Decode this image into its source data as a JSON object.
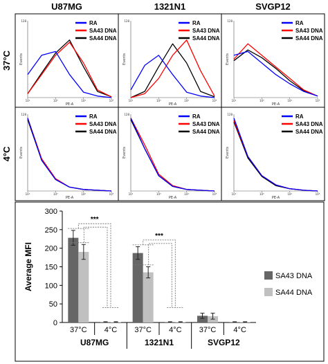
{
  "chart_data": [
    {
      "type": "line",
      "panel": "flow-histogram-grid",
      "columns": [
        "U87MG",
        "1321N1",
        "SVGP12"
      ],
      "rows": [
        "37°C",
        "4°C"
      ],
      "ylabel": "Events",
      "xlabel": "PE-A",
      "ytick_top": "128",
      "xticks": [
        "10²",
        "10³",
        "10⁴",
        "10⁵"
      ],
      "x": [
        2,
        2.5,
        3,
        3.5,
        4,
        4.5,
        5
      ],
      "legend": [
        "RA",
        "SA43 DNA",
        "SA44 DNA"
      ],
      "colors": {
        "RA": "#0000ff",
        "SA43 DNA": "#ff0000",
        "SA44 DNA": "#000000"
      },
      "histograms": {
        "U87MG_37": {
          "RA": [
            0.3,
            0.55,
            0.6,
            0.3,
            0.07,
            0.02,
            0.0
          ],
          "SA43 DNA": [
            0.05,
            0.3,
            0.55,
            0.72,
            0.45,
            0.1,
            0.01
          ],
          "SA44 DNA": [
            0.05,
            0.32,
            0.58,
            0.75,
            0.4,
            0.08,
            0.01
          ]
        },
        "1321N1_37": {
          "RA": [
            0.1,
            0.42,
            0.55,
            0.3,
            0.07,
            0.02,
            0.0
          ],
          "SA43 DNA": [
            0.0,
            0.05,
            0.25,
            0.55,
            0.75,
            0.35,
            0.02
          ],
          "SA44 DNA": [
            0.0,
            0.08,
            0.4,
            0.7,
            0.45,
            0.08,
            0.01
          ]
        },
        "SVGP12_37": {
          "RA": [
            0.55,
            0.6,
            0.45,
            0.3,
            0.18,
            0.08,
            0.02
          ],
          "SA43 DNA": [
            0.5,
            0.7,
            0.55,
            0.4,
            0.25,
            0.1,
            0.02
          ],
          "SA44 DNA": [
            0.48,
            0.62,
            0.52,
            0.38,
            0.22,
            0.09,
            0.02
          ]
        },
        "U87MG_4": {
          "RA": [
            0.95,
            0.4,
            0.15,
            0.05,
            0.02,
            0.01,
            0.0
          ],
          "SA43 DNA": [
            0.95,
            0.42,
            0.16,
            0.05,
            0.02,
            0.01,
            0.0
          ],
          "SA44 DNA": [
            0.93,
            0.4,
            0.15,
            0.05,
            0.02,
            0.01,
            0.0
          ]
        },
        "1321N1_4": {
          "RA": [
            0.95,
            0.55,
            0.2,
            0.06,
            0.02,
            0.01,
            0.0
          ],
          "SA43 DNA": [
            0.95,
            0.6,
            0.22,
            0.07,
            0.02,
            0.01,
            0.0
          ],
          "SA44 DNA": [
            0.93,
            0.55,
            0.2,
            0.06,
            0.02,
            0.01,
            0.0
          ]
        },
        "SVGP12_4": {
          "RA": [
            0.95,
            0.45,
            0.2,
            0.08,
            0.03,
            0.01,
            0.0
          ],
          "SA43 DNA": [
            0.92,
            0.45,
            0.2,
            0.08,
            0.03,
            0.01,
            0.0
          ],
          "SA44 DNA": [
            0.9,
            0.43,
            0.19,
            0.07,
            0.03,
            0.01,
            0.0
          ]
        }
      }
    },
    {
      "type": "bar",
      "panel": "average-mfi",
      "ylabel": "Average MFI",
      "ylim": [
        0,
        300
      ],
      "yticks": [
        0,
        50,
        100,
        150,
        200,
        250,
        300
      ],
      "groups": [
        "U87MG",
        "1321N1",
        "SVGP12"
      ],
      "conditions": [
        "37°C",
        "4°C"
      ],
      "series": [
        {
          "name": "SA43 DNA",
          "color": "#666666",
          "values": [
            228,
            1,
            187,
            1,
            18,
            1
          ],
          "errors": [
            20,
            1,
            17,
            1,
            7,
            1
          ]
        },
        {
          "name": "SA44 DNA",
          "color": "#c0c0c0",
          "values": [
            190,
            1,
            135,
            1,
            17,
            1
          ],
          "errors": [
            20,
            1,
            15,
            1,
            8,
            1
          ]
        }
      ],
      "significance": [
        {
          "group": "U87MG",
          "label": "***"
        },
        {
          "group": "1321N1",
          "label": "***"
        }
      ]
    }
  ]
}
